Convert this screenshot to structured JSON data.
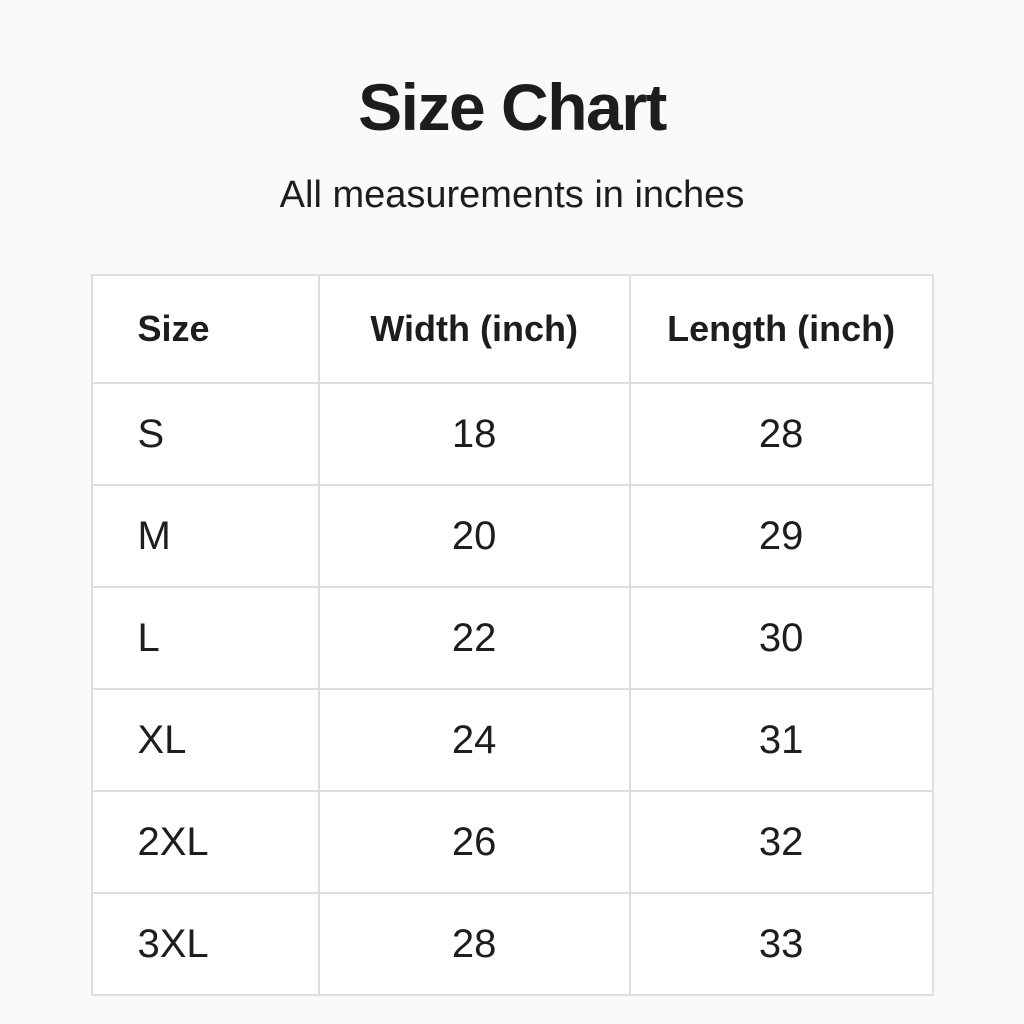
{
  "page": {
    "title": "Size Chart",
    "subtitle": "All measurements in inches"
  },
  "colors": {
    "page_background": "#fafafa",
    "cell_background": "#ffffff",
    "border": "#dedede",
    "text": "#1d1d1f"
  },
  "chart_data": {
    "type": "table",
    "title": "Size Chart",
    "subtitle": "All measurements in inches",
    "columns": [
      "Size",
      "Width (inch)",
      "Length (inch)"
    ],
    "rows": [
      [
        "S",
        "18",
        "28"
      ],
      [
        "M",
        "20",
        "29"
      ],
      [
        "L",
        "22",
        "30"
      ],
      [
        "XL",
        "24",
        "31"
      ],
      [
        "2XL",
        "26",
        "32"
      ],
      [
        "3XL",
        "28",
        "33"
      ]
    ]
  }
}
